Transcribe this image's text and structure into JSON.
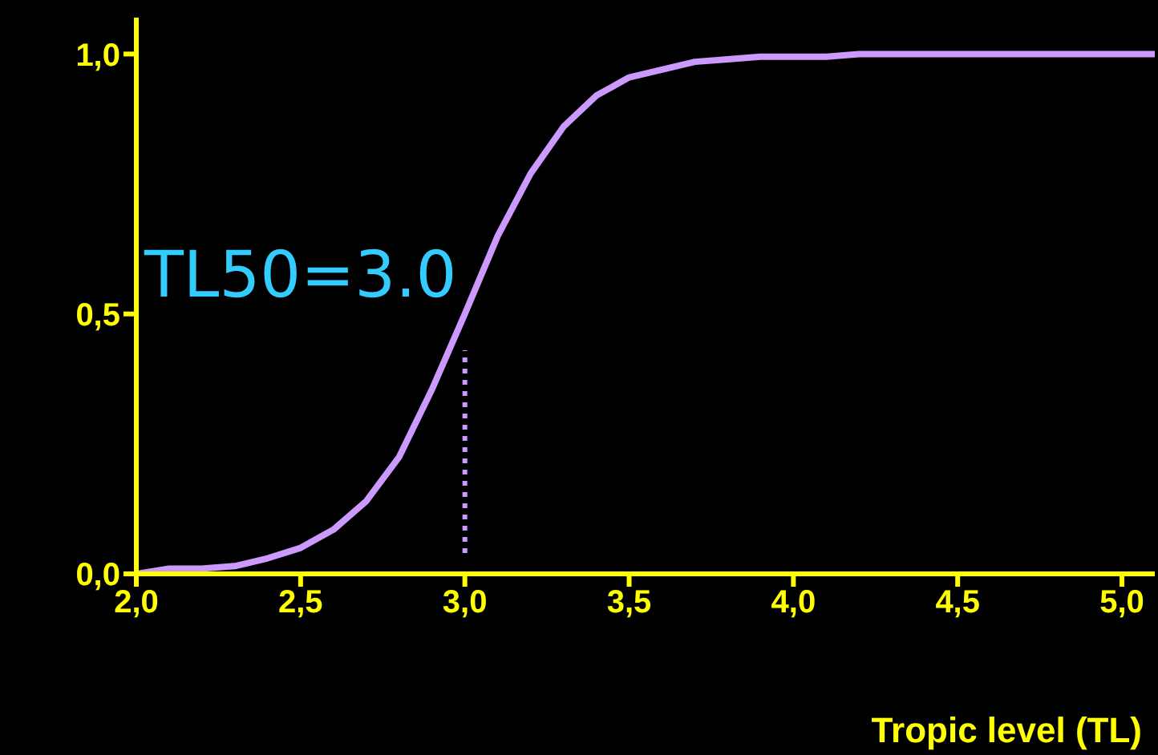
{
  "chart_data": {
    "type": "line",
    "xlabel": "Tropic level (TL)",
    "xlim": [
      2.0,
      5.1
    ],
    "ylim": [
      0,
      1.07
    ],
    "xticks": [
      {
        "value": 2.0,
        "label": "2,0"
      },
      {
        "value": 2.5,
        "label": "2,5"
      },
      {
        "value": 3.0,
        "label": "3,0"
      },
      {
        "value": 3.5,
        "label": "3,5"
      },
      {
        "value": 4.0,
        "label": "4,0"
      },
      {
        "value": 4.5,
        "label": "4,5"
      },
      {
        "value": 5.0,
        "label": "5,0"
      }
    ],
    "yticks": [
      {
        "value": 0,
        "label": "0,0"
      },
      {
        "value": 0.5,
        "label": "0,5"
      },
      {
        "value": 1.0,
        "label": "1,0"
      }
    ],
    "series": [
      {
        "color": "#cc99ff",
        "line_style": "solid",
        "x": [
          2.0,
          2.1,
          2.2,
          2.3,
          2.4,
          2.5,
          2.6,
          2.7,
          2.8,
          2.9,
          3.0,
          3.1,
          3.2,
          3.3,
          3.4,
          3.5,
          3.6,
          3.7,
          3.8,
          3.9,
          4.0,
          4.1,
          4.2,
          4.3,
          4.4,
          4.5,
          4.6,
          4.7,
          4.8,
          4.9,
          5.0,
          5.1
        ],
        "values": [
          0.0,
          0.01,
          0.01,
          0.015,
          0.03,
          0.05,
          0.085,
          0.14,
          0.225,
          0.355,
          0.5,
          0.65,
          0.77,
          0.86,
          0.92,
          0.955,
          0.97,
          0.985,
          0.99,
          0.995,
          0.995,
          0.995,
          1.0,
          1.0,
          1.0,
          1.0,
          1.0,
          1.0,
          1.0,
          1.0,
          1.0,
          1.0
        ]
      },
      {
        "color": "#cc99ff",
        "line_style": "dotted",
        "x": [
          3.0,
          3.0
        ],
        "values": [
          0.04,
          0.43
        ]
      }
    ],
    "annotations": [
      "TL50=3.0"
    ]
  }
}
